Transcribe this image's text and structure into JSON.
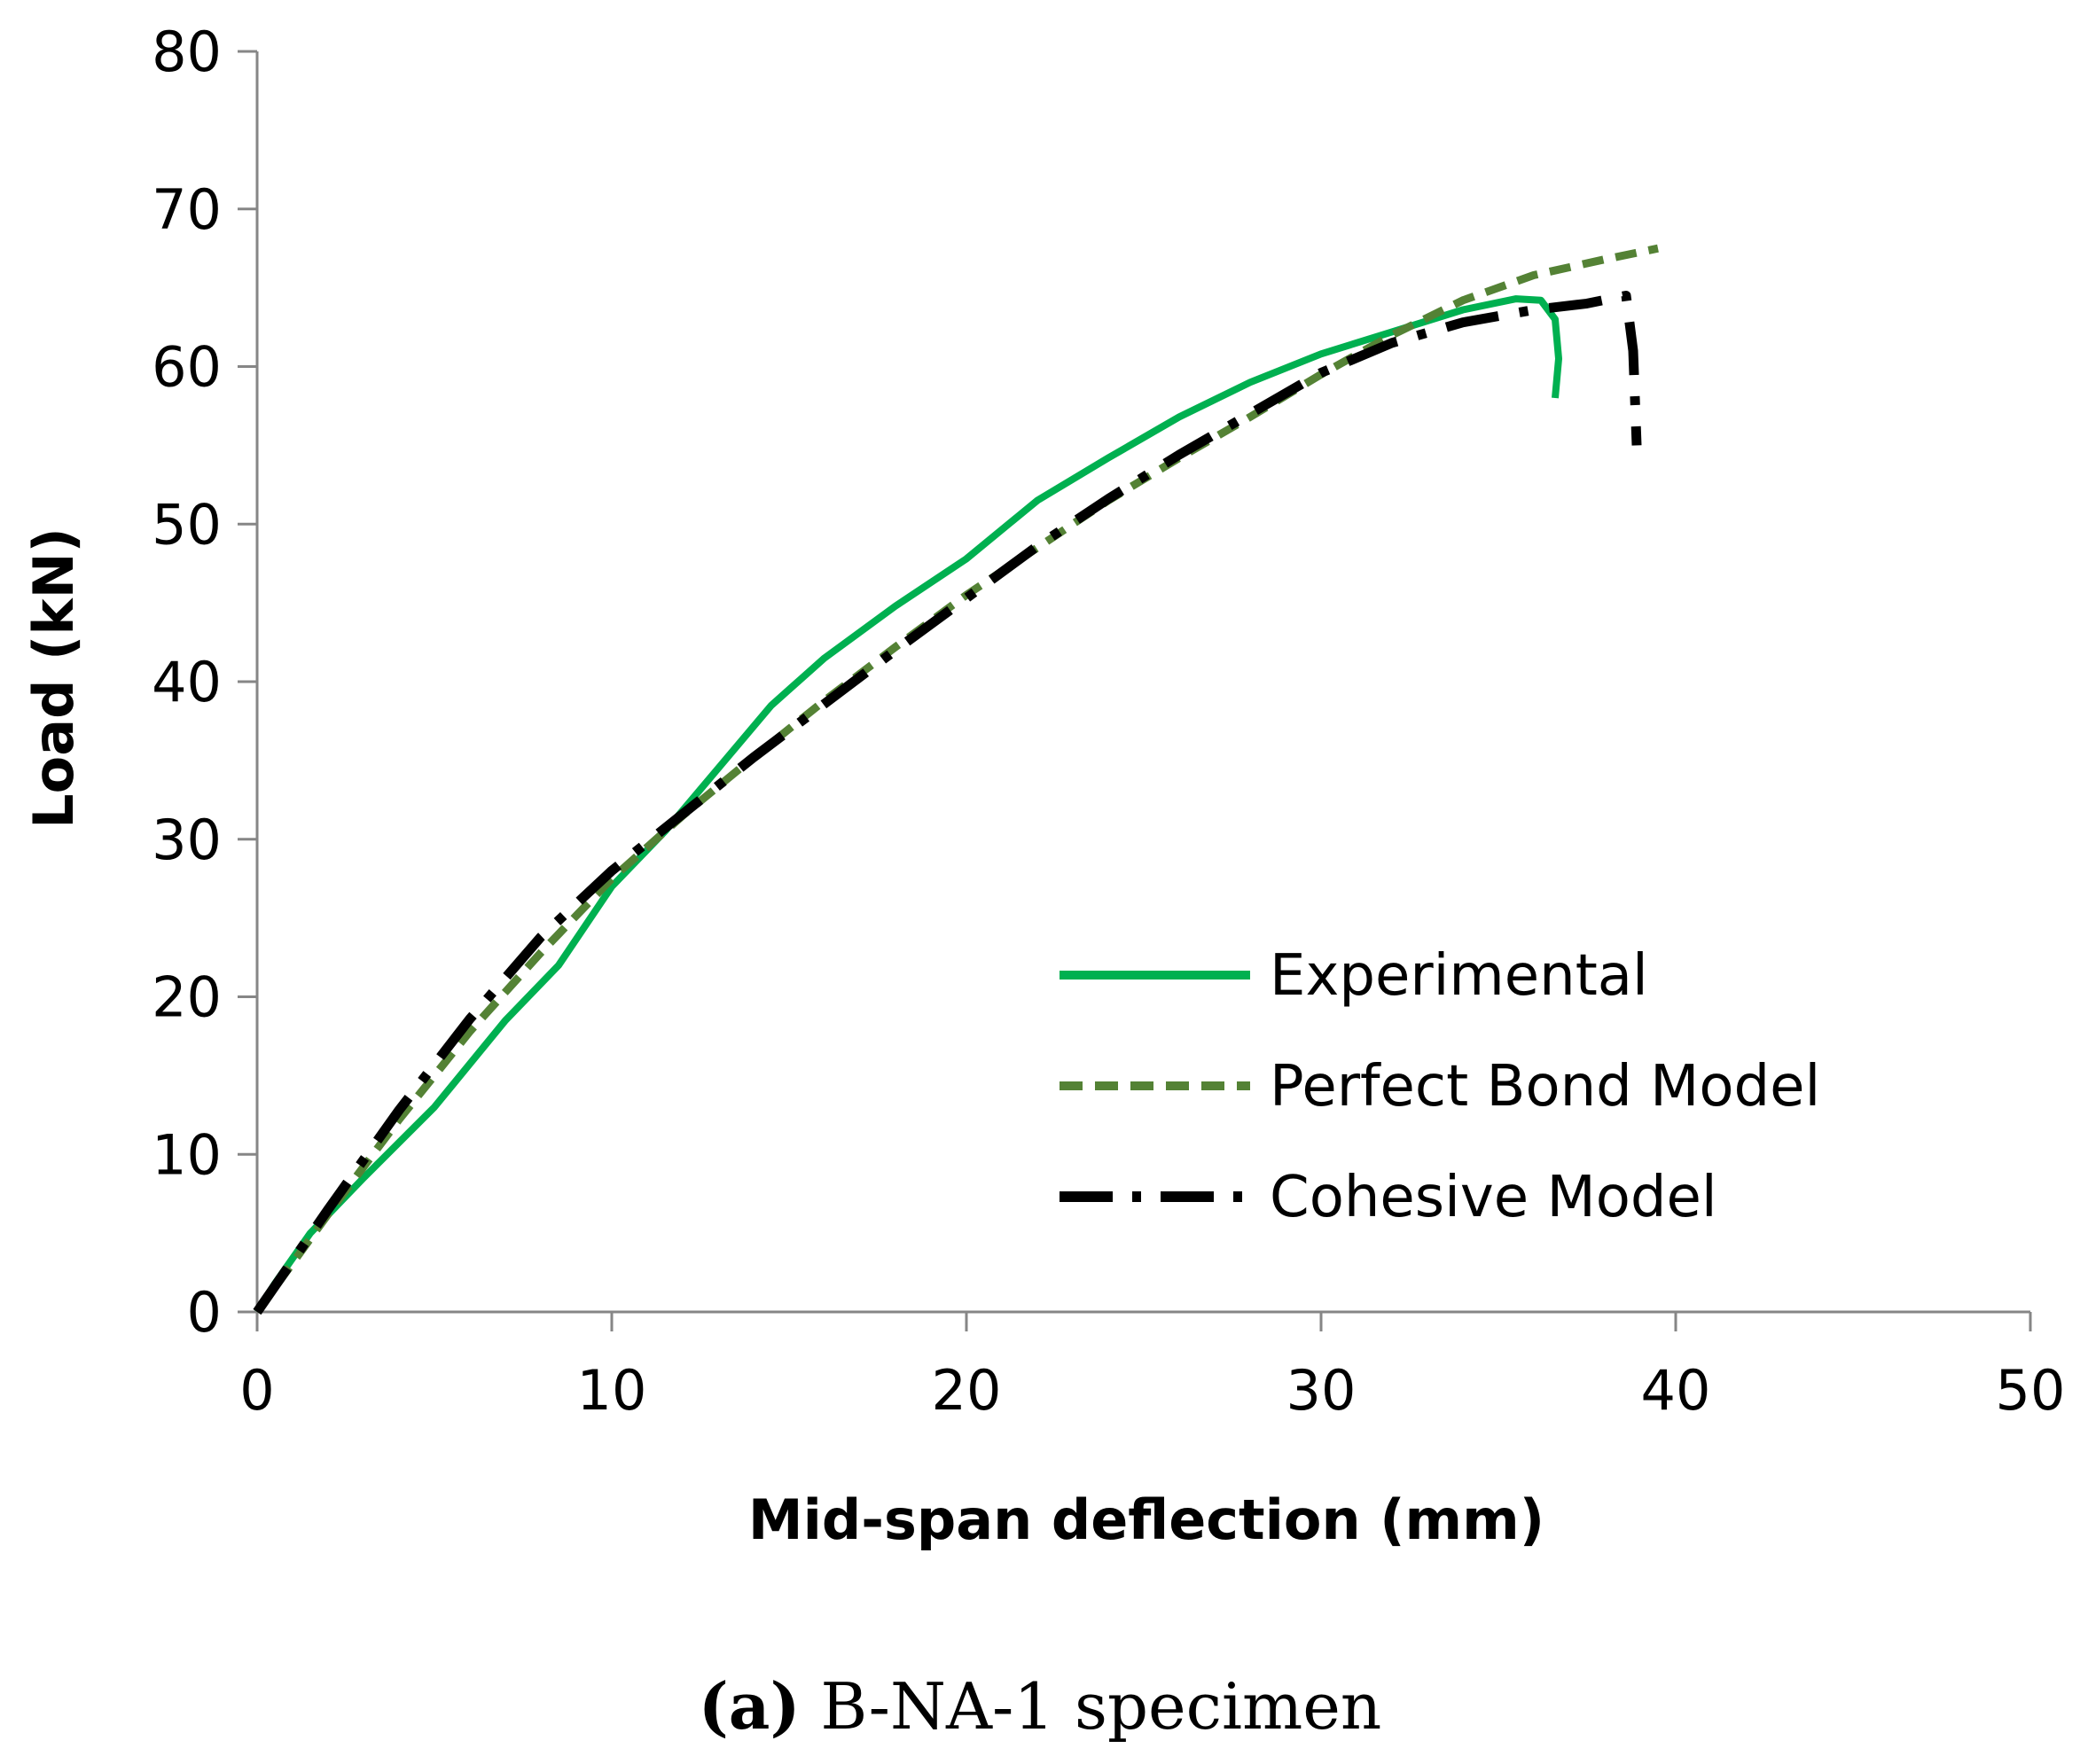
{
  "chart_data": {
    "type": "line",
    "xlabel": "Mid-span deflection (mm)",
    "ylabel": "Load (kN)",
    "xlim": [
      0,
      50
    ],
    "ylim": [
      0,
      80
    ],
    "xticks": [
      0,
      10,
      20,
      30,
      40,
      50
    ],
    "yticks": [
      0,
      10,
      20,
      30,
      40,
      50,
      60,
      70,
      80
    ],
    "grid": false,
    "legend_position": "right-middle",
    "series": [
      {
        "name": "Experimental",
        "color": "#00b050",
        "style": "solid",
        "x": [
          0,
          0.5,
          1.5,
          3,
          5,
          7,
          8.5,
          10,
          11.5,
          13,
          14.5,
          16,
          18,
          20,
          22,
          24,
          26,
          28,
          30,
          32,
          34,
          35.5,
          36.2,
          36.6,
          36.7,
          36.6
        ],
        "y": [
          0,
          1.8,
          5,
          8.5,
          13,
          18.5,
          22,
          27,
          30.5,
          34.5,
          38.5,
          41.5,
          44.8,
          47.8,
          51.5,
          54.2,
          56.8,
          59,
          60.8,
          62.2,
          63.6,
          64.3,
          64.2,
          63,
          60.5,
          58
        ]
      },
      {
        "name": "Perfect Bond Model",
        "color": "#548235",
        "style": "dashed",
        "x": [
          0,
          2,
          4,
          6,
          8,
          10,
          12,
          14,
          16,
          18,
          20,
          22,
          24,
          26,
          28,
          30,
          32,
          34,
          36,
          38,
          39.5
        ],
        "y": [
          0,
          6.2,
          12.2,
          17.8,
          22.8,
          27.5,
          31.5,
          35.2,
          38.8,
          42.2,
          45.5,
          48.5,
          51.5,
          54.2,
          56.8,
          59.5,
          62,
          64.2,
          65.8,
          66.8,
          67.5
        ]
      },
      {
        "name": "Cohesive Model",
        "color": "#000000",
        "style": "dash-dot",
        "x": [
          0,
          2,
          4,
          6,
          8,
          10,
          12,
          14,
          16,
          18,
          20,
          22,
          24,
          26,
          28,
          30,
          32,
          34,
          36,
          37.5,
          38.6,
          38.8,
          38.9
        ],
        "y": [
          0,
          6.5,
          12.8,
          18.6,
          23.8,
          28,
          31.6,
          35.2,
          38.6,
          42,
          45.3,
          48.6,
          51.6,
          54.4,
          57,
          59.6,
          61.5,
          62.8,
          63.6,
          64,
          64.5,
          61,
          55
        ]
      }
    ],
    "caption_letter": "(a)",
    "caption_rest": " B-NA-1 specimen"
  }
}
